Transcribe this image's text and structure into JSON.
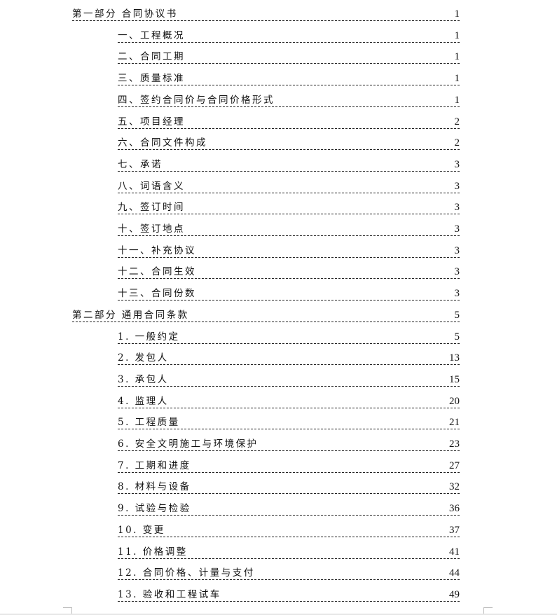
{
  "toc": [
    {
      "level": "part",
      "title": "第一部分 合同协议书",
      "page": "1"
    },
    {
      "level": "item",
      "title": "一、工程概况",
      "page": "1"
    },
    {
      "level": "item",
      "title": "二、合同工期",
      "page": "1"
    },
    {
      "level": "item",
      "title": "三、质量标准",
      "page": "1"
    },
    {
      "level": "item",
      "title": "四、签约合同价与合同价格形式",
      "page": "1"
    },
    {
      "level": "item",
      "title": "五、项目经理",
      "page": "2"
    },
    {
      "level": "item",
      "title": "六、合同文件构成",
      "page": "2"
    },
    {
      "level": "item",
      "title": "七、承诺",
      "page": "3"
    },
    {
      "level": "item",
      "title": "八、词语含义",
      "page": "3"
    },
    {
      "level": "item",
      "title": "九、签订时间",
      "page": "3"
    },
    {
      "level": "item",
      "title": "十、签订地点",
      "page": "3"
    },
    {
      "level": "item",
      "title": "十一、补充协议",
      "page": "3"
    },
    {
      "level": "item",
      "title": "十二、合同生效",
      "page": "3"
    },
    {
      "level": "item",
      "title": "十三、合同份数",
      "page": "3"
    },
    {
      "level": "part",
      "title": "第二部分 通用合同条款",
      "page": "5"
    },
    {
      "level": "item",
      "title": "1.  一般约定",
      "page": "5"
    },
    {
      "level": "item",
      "title": "2.  发包人",
      "page": "13"
    },
    {
      "level": "item",
      "title": "3.  承包人",
      "page": "15"
    },
    {
      "level": "item",
      "title": "4.  监理人",
      "page": "20"
    },
    {
      "level": "item",
      "title": "5.  工程质量",
      "page": "21"
    },
    {
      "level": "item",
      "title": "6.  安全文明施工与环境保护",
      "page": "23"
    },
    {
      "level": "item",
      "title": "7.  工期和进度",
      "page": "27"
    },
    {
      "level": "item",
      "title": "8.  材料与设备",
      "page": "32"
    },
    {
      "level": "item",
      "title": "9.  试验与检验",
      "page": "36"
    },
    {
      "level": "item",
      "title": "10.  变更",
      "page": "37"
    },
    {
      "level": "item",
      "title": "11.  价格调整",
      "page": "41"
    },
    {
      "level": "item",
      "title": "12.  合同价格、计量与支付",
      "page": "44"
    },
    {
      "level": "item",
      "title": "13.  验收和工程试车",
      "page": "49"
    }
  ]
}
